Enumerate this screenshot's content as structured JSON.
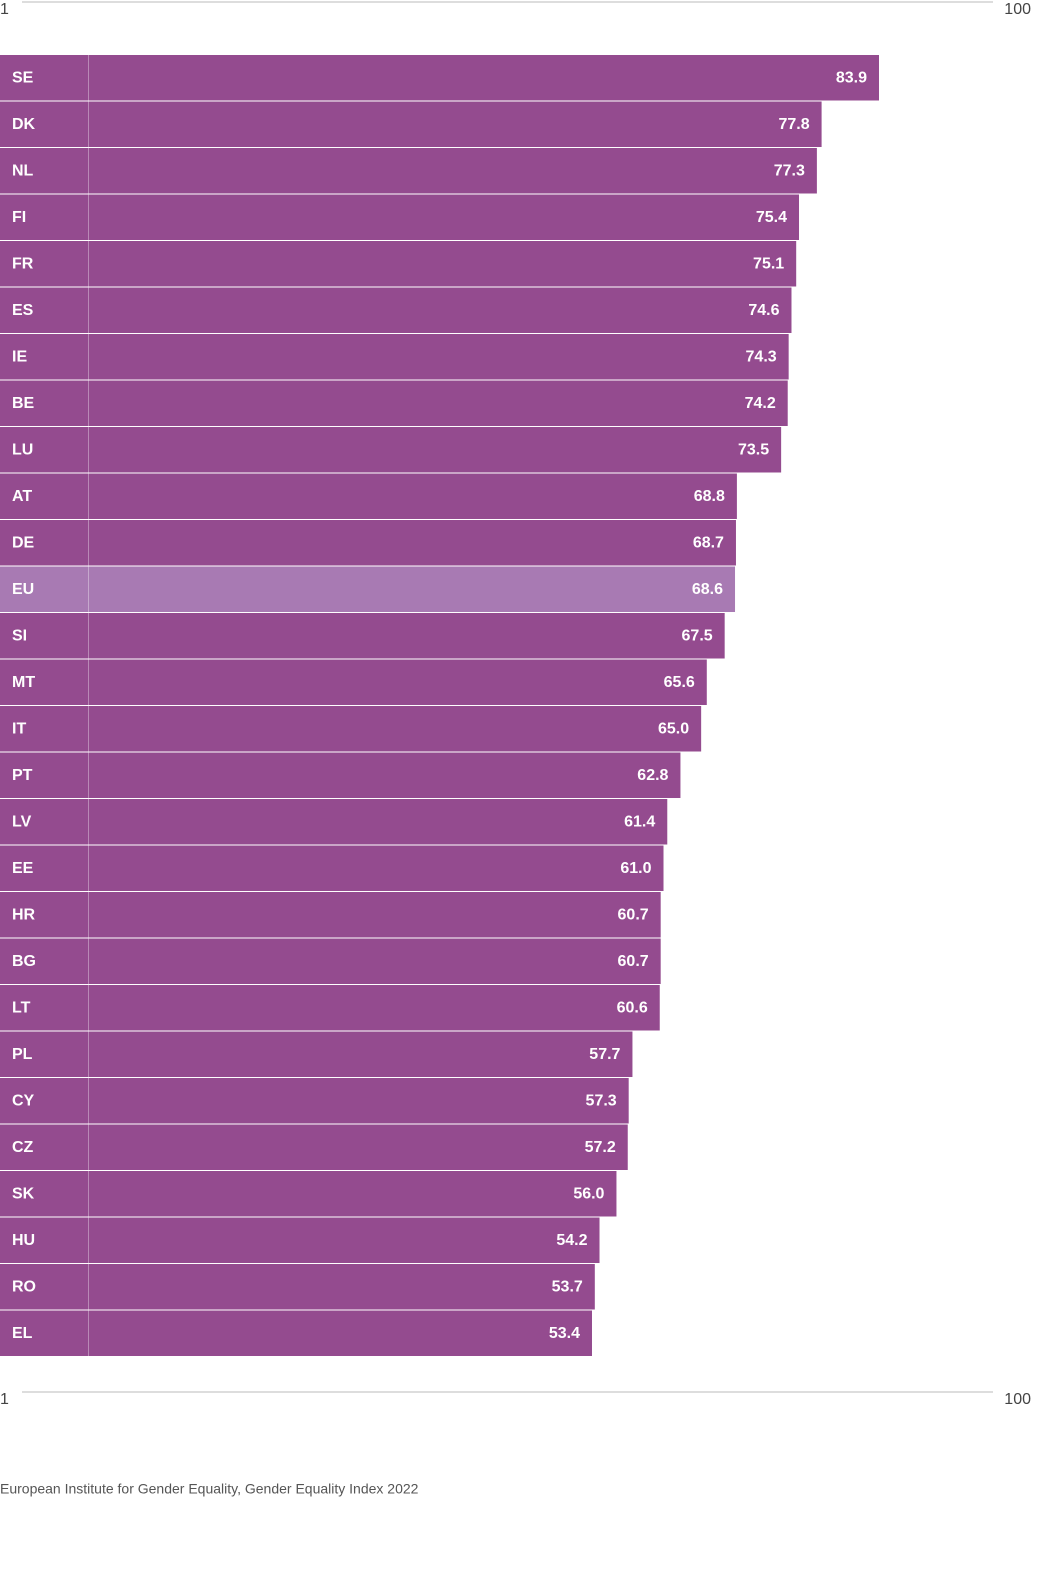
{
  "chart_data": {
    "type": "bar",
    "orientation": "horizontal",
    "categories": [
      "SE",
      "DK",
      "NL",
      "FI",
      "FR",
      "ES",
      "IE",
      "BE",
      "LU",
      "AT",
      "DE",
      "EU",
      "SI",
      "MT",
      "IT",
      "PT",
      "LV",
      "EE",
      "HR",
      "BG",
      "LT",
      "PL",
      "CY",
      "CZ",
      "SK",
      "HU",
      "RO",
      "EL"
    ],
    "values": [
      83.9,
      77.8,
      77.3,
      75.4,
      75.1,
      74.6,
      74.3,
      74.2,
      73.5,
      68.8,
      68.7,
      68.6,
      67.5,
      65.6,
      65.0,
      62.8,
      61.4,
      61.0,
      60.7,
      60.7,
      60.6,
      57.7,
      57.3,
      57.2,
      56.0,
      54.2,
      53.7,
      53.4
    ],
    "value_labels": [
      "83.9",
      "77.8",
      "77.3",
      "75.4",
      "75.1",
      "74.6",
      "74.3",
      "74.2",
      "73.5",
      "68.8",
      "68.7",
      "68.6",
      "67.5",
      "65.6",
      "65.0",
      "62.8",
      "61.4",
      "61.0",
      "60.7",
      "60.7",
      "60.6",
      "57.7",
      "57.3",
      "57.2",
      "56.0",
      "54.2",
      "53.7",
      "53.4"
    ],
    "colors": [
      "#944b8f",
      "#944b8f",
      "#944b8f",
      "#944b8f",
      "#944b8f",
      "#944b8f",
      "#944b8f",
      "#944b8f",
      "#944b8f",
      "#944b8f",
      "#944b8f",
      "#a87ab3",
      "#944b8f",
      "#944b8f",
      "#944b8f",
      "#944b8f",
      "#944b8f",
      "#944b8f",
      "#944b8f",
      "#944b8f",
      "#944b8f",
      "#944b8f",
      "#944b8f",
      "#944b8f",
      "#944b8f",
      "#944b8f",
      "#944b8f",
      "#944b8f"
    ],
    "xlim": [
      1,
      100
    ],
    "xticks": [
      1,
      100
    ],
    "source": "European Institute for Gender Equality, Gender Equality Index 2022"
  }
}
